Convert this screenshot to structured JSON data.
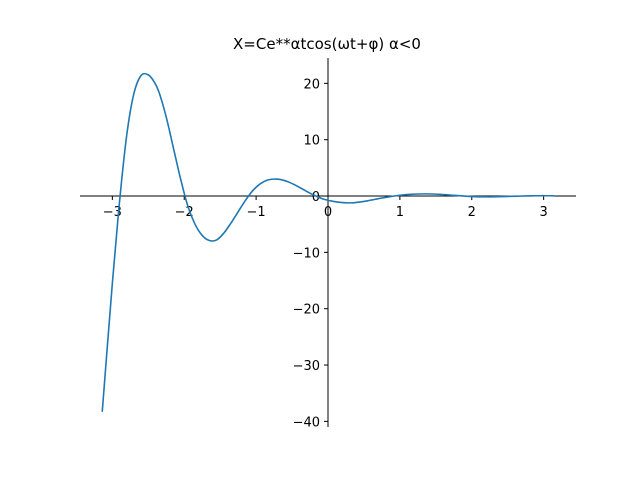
{
  "chart_data": {
    "type": "line",
    "title": "X=Ce**αtcos(ωt+φ)   α<0",
    "xlabel": "",
    "ylabel": "",
    "xlim": [
      -3.45,
      3.45
    ],
    "ylim": [
      -41,
      24.5
    ],
    "xticks": [
      -3,
      -2,
      -1,
      0,
      1,
      2,
      3
    ],
    "xtick_labels": [
      "−3",
      "−2",
      "−1",
      "0",
      "1",
      "2",
      "3"
    ],
    "yticks": [
      20,
      10,
      0,
      -10,
      -20,
      -30,
      -40
    ],
    "ytick_labels": [
      "20",
      "10",
      "0",
      "−10",
      "−20",
      "−30",
      "−40"
    ],
    "grid": false,
    "legend": "none",
    "spines": "centered",
    "line_color": "#1f77b4",
    "series": [
      {
        "x": [
          -3.14,
          -3.0,
          -2.9,
          -2.8,
          -2.7,
          -2.6,
          -2.5,
          -2.42,
          -2.35,
          -2.25,
          -2.15,
          -2.05,
          -1.95,
          -1.85,
          -1.75,
          -1.65,
          -1.55,
          -1.45,
          -1.35,
          -1.25,
          -1.15,
          -1.05,
          -0.95,
          -0.85,
          -0.75,
          -0.65,
          -0.55,
          -0.45,
          -0.35,
          -0.25,
          -0.15,
          -0.05,
          0.05,
          0.15,
          0.25,
          0.35,
          0.45,
          0.55,
          0.65,
          0.75,
          0.85,
          0.95,
          1.05,
          1.15,
          1.25,
          1.35,
          1.45,
          1.55,
          1.65,
          1.75,
          1.85,
          1.95,
          2.05,
          2.15,
          2.25,
          2.35,
          2.45,
          2.55,
          2.65,
          2.75,
          2.85,
          2.95,
          3.05,
          3.14
        ],
        "y": [
          -38.2,
          -15.5,
          -1.0,
          10.8,
          18.2,
          21.4,
          21.5,
          20.3,
          18.4,
          14.0,
          8.5,
          3.0,
          -1.8,
          -5.0,
          -7.0,
          -7.9,
          -7.8,
          -6.6,
          -4.8,
          -2.8,
          -0.8,
          0.9,
          2.1,
          2.8,
          3.0,
          2.9,
          2.5,
          1.9,
          1.2,
          0.5,
          -0.1,
          -0.6,
          -0.9,
          -1.1,
          -1.2,
          -1.2,
          -1.05,
          -0.85,
          -0.6,
          -0.35,
          -0.15,
          0.05,
          0.2,
          0.3,
          0.36,
          0.38,
          0.36,
          0.3,
          0.22,
          0.12,
          0.03,
          -0.05,
          -0.11,
          -0.14,
          -0.15,
          -0.13,
          -0.1,
          -0.06,
          -0.02,
          0.02,
          0.04,
          0.05,
          0.05,
          0.04
        ]
      }
    ]
  }
}
